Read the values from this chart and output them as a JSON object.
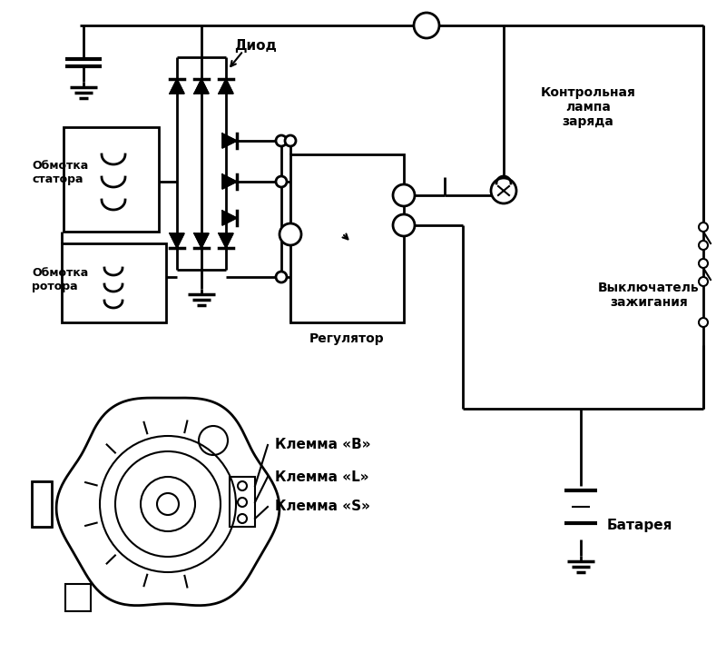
{
  "bg_color": "#ffffff",
  "line_color": "#000000",
  "labels": {
    "diod": "Диод",
    "obmotka_statora": "Обмотка\nстатора",
    "obmotka_rotora": "Обмотка\nротора",
    "regulator": "Регулятор",
    "kontrol_lampa": "Контрольная\nлампа\nзаряда",
    "vyklyuchatel": "Выключатель\nзажигания",
    "batareya": "Батарея",
    "klemma_B": "Клемма «B»",
    "klemma_L": "Клемма «L»",
    "klemma_S": "Клемма «S»"
  },
  "figsize": [
    8.0,
    7.19
  ],
  "dpi": 100
}
